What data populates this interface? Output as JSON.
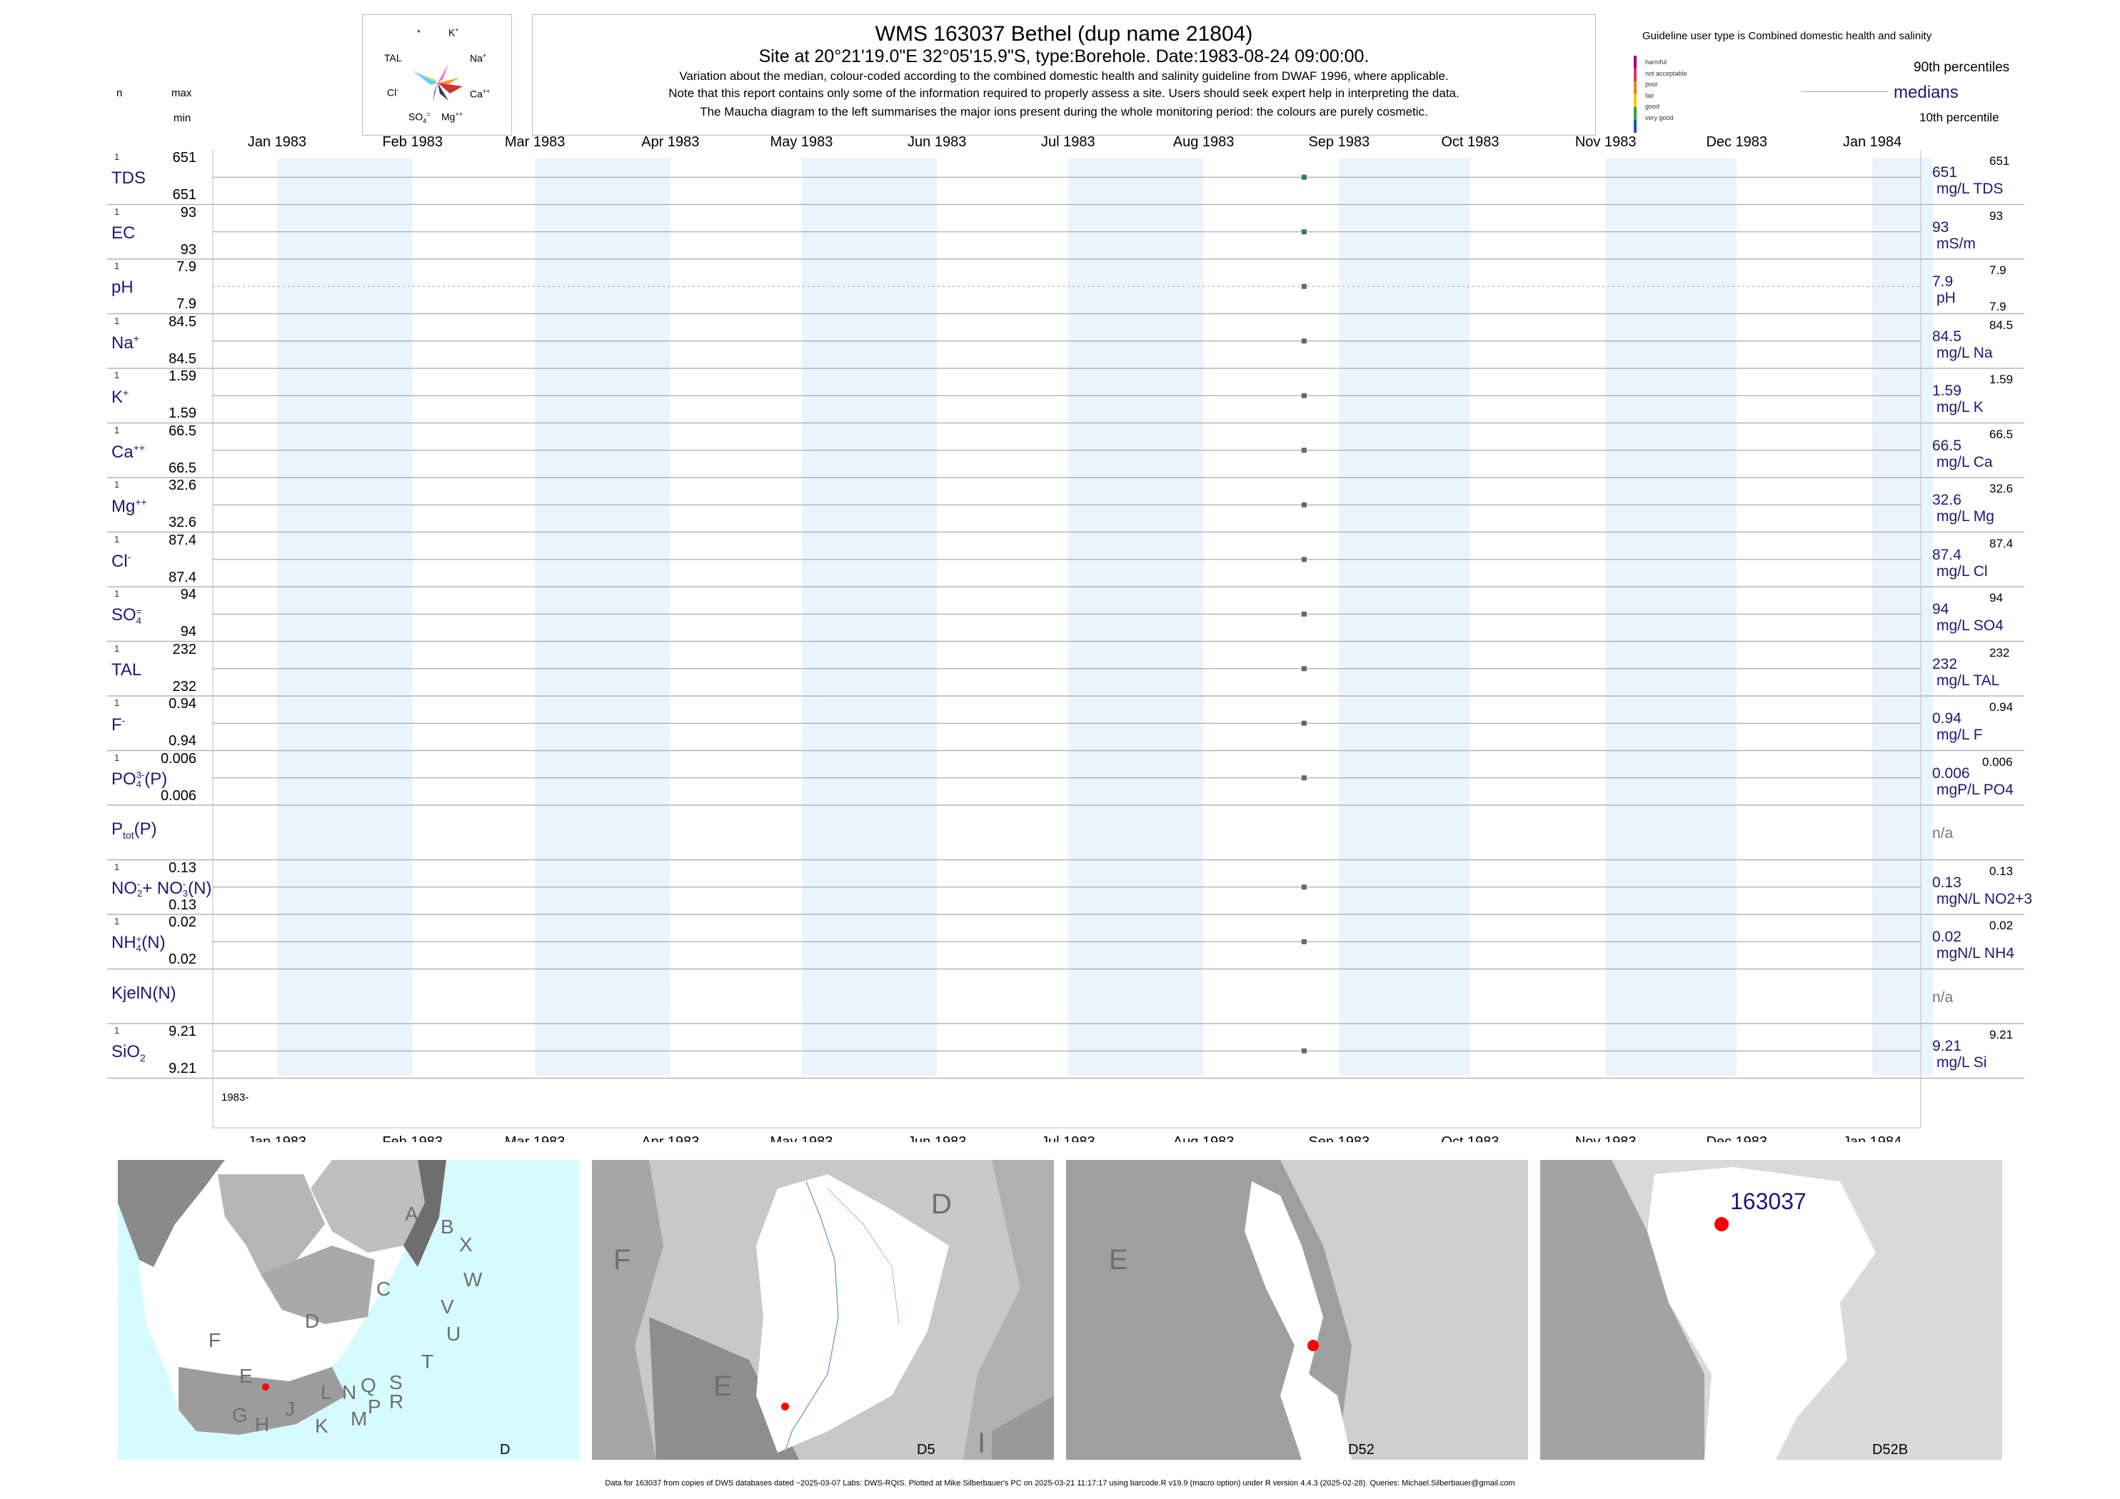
{
  "header": {
    "title": "WMS 163037  Bethel (dup name 21804)",
    "subtitle": "Site at 20°21'19.0\"E 32°05'15.9\"S, type:Borehole. Date:1983-08-24 09:00:00.",
    "note1": "Variation about the median,  colour-coded according to the combined domestic health and salinity guideline from DWAF 1996, where applicable.",
    "note2": "Note that this report contains only some of the information required to properly assess a site. Users should seek expert help in interpreting the data.",
    "note3": "The Maucha diagram to the left summarises the major ions present during the whole monitoring period: the colours are purely cosmetic."
  },
  "left_header": {
    "n": "n",
    "max": "max",
    "min": "min"
  },
  "maucha": {
    "labels": {
      "star": "*",
      "k": "K",
      "tal": "TAL",
      "na": "Na",
      "cl": "Cl",
      "ca": "Ca",
      "so4": "SO",
      "mg": "Mg"
    }
  },
  "legend": {
    "guideline": "Guideline user type is Combined domestic health and salinity",
    "levels": [
      "harmful",
      "not acceptable",
      "poor",
      "fair",
      "good",
      "very good"
    ],
    "colors": [
      "#a0007a",
      "#e8305a",
      "#f08020",
      "#e8d000",
      "#30a040",
      "#2050c0"
    ],
    "p90": "90th percentiles",
    "medians": "medians",
    "p10": "10th percentile"
  },
  "months": [
    "Jan 1983",
    "Feb 1983",
    "Mar 1983",
    "Apr 1983",
    "May 1983",
    "Jun 1983",
    "Jul 1983",
    "Aug 1983",
    "Sep 1983",
    "Oct 1983",
    "Nov 1983",
    "Dec 1983",
    "Jan 1984"
  ],
  "year_label": "1983-",
  "chart_data": {
    "type": "scatter",
    "x_range": [
      "1983-01-01",
      "1984-01-01"
    ],
    "sample_date": "1983-08-24",
    "rows": [
      {
        "label": "TDS",
        "n": "1",
        "max": "651",
        "min": "651",
        "median": "651",
        "unit": "mg/L TDS",
        "p90": "651",
        "p10": "",
        "color": "#2e7d4f"
      },
      {
        "label": "EC",
        "n": "1",
        "max": "93",
        "min": "93",
        "median": "93",
        "unit": "mS/m",
        "p90": "93",
        "p10": "",
        "color": "#2e7d4f"
      },
      {
        "label": "pH",
        "n": "1",
        "max": "7.9",
        "min": "7.9",
        "median": "7.9",
        "unit": "pH",
        "p90": "7.9",
        "p10": "7.9",
        "color": "#666666"
      },
      {
        "label": "Na",
        "sup": "+",
        "n": "1",
        "max": "84.5",
        "min": "84.5",
        "median": "84.5",
        "unit": "mg/L Na",
        "p90": "84.5",
        "p10": "",
        "color": "#666666"
      },
      {
        "label": "K",
        "sup": "+",
        "n": "1",
        "max": "1.59",
        "min": "1.59",
        "median": "1.59",
        "unit": "mg/L K",
        "p90": "1.59",
        "p10": "",
        "color": "#666666"
      },
      {
        "label": "Ca",
        "sup": "++",
        "n": "1",
        "max": "66.5",
        "min": "66.5",
        "median": "66.5",
        "unit": "mg/L Ca",
        "p90": "66.5",
        "p10": "",
        "color": "#666666"
      },
      {
        "label": "Mg",
        "sup": "++",
        "n": "1",
        "max": "32.6",
        "min": "32.6",
        "median": "32.6",
        "unit": "mg/L Mg",
        "p90": "32.6",
        "p10": "",
        "color": "#666666"
      },
      {
        "label": "Cl",
        "sup": "-",
        "n": "1",
        "max": "87.4",
        "min": "87.4",
        "median": "87.4",
        "unit": "mg/L Cl",
        "p90": "87.4",
        "p10": "",
        "color": "#666666"
      },
      {
        "label": "SO",
        "sub": "4",
        "sup": "=",
        "n": "1",
        "max": "94",
        "min": "94",
        "median": "94",
        "unit": "mg/L SO4",
        "p90": "94",
        "p10": "",
        "color": "#666666"
      },
      {
        "label": "TAL",
        "n": "1",
        "max": "232",
        "min": "232",
        "median": "232",
        "unit": "mg/L TAL",
        "p90": "232",
        "p10": "",
        "color": "#666666"
      },
      {
        "label": "F",
        "sup": "-",
        "n": "1",
        "max": "0.94",
        "min": "0.94",
        "median": "0.94",
        "unit": "mg/L F",
        "p90": "0.94",
        "p10": "",
        "color": "#666666"
      },
      {
        "label": "PO",
        "sub": "4",
        "sup": "3-",
        "tail": "(P)",
        "n": "1",
        "max": "0.006",
        "min": "0.006",
        "median": "0.006",
        "unit": "mgP/L PO4",
        "p90": "0.006",
        "p10": "",
        "color": "#666666"
      },
      {
        "label": "P",
        "sub": "tot",
        "tail": "(P)",
        "n": "",
        "max": "",
        "min": "",
        "median": "n/a",
        "unit": "",
        "p90": "",
        "p10": "",
        "color": ""
      },
      {
        "label": "NO",
        "sub": "2",
        "sup": "-",
        "tail": "+ NO",
        "sub2": "3",
        "sup2": "-",
        "tail2": "(N)",
        "n": "1",
        "max": "0.13",
        "min": "0.13",
        "median": "0.13",
        "unit": "mgN/L NO2+3",
        "p90": "0.13",
        "p10": "",
        "color": "#666666"
      },
      {
        "label": "NH",
        "sub": "4",
        "sup": "+",
        "tail": "(N)",
        "n": "1",
        "max": "0.02",
        "min": "0.02",
        "median": "0.02",
        "unit": "mgN/L NH4",
        "p90": "0.02",
        "p10": "",
        "color": "#666666"
      },
      {
        "label": "KjelN(N)",
        "n": "",
        "max": "",
        "min": "",
        "median": "n/a",
        "unit": "",
        "p90": "",
        "p10": "",
        "color": ""
      },
      {
        "label": "SiO",
        "sub": "2",
        "n": "1",
        "max": "9.21",
        "min": "9.21",
        "median": "9.21",
        "unit": "mg/L Si",
        "p90": "9.21",
        "p10": "",
        "color": "#666666"
      }
    ]
  },
  "maps": {
    "m1": {
      "letters": [
        "A",
        "B",
        "X",
        "C",
        "W",
        "D",
        "V",
        "U",
        "F",
        "T",
        "E",
        "S",
        "R",
        "N",
        "Q",
        "L",
        "J",
        "P",
        "M",
        "K",
        "H",
        "G"
      ],
      "code": "D"
    },
    "m2": {
      "letters": [
        "D",
        "F",
        "E",
        "I"
      ],
      "code": "D5"
    },
    "m3": {
      "letters": [
        "E"
      ],
      "code": "D52"
    },
    "m4": {
      "site": "163037",
      "code": "D52B"
    }
  },
  "footer": "Data for 163037 from copies of DWS databases dated ~2025-03-07 Labs: DWS-RQIS. Plotted at Mike Silberbauer's PC on 2025-03-21 11:17:17 using barcode.R v19.9 (macro option) under R version 4.4.3 (2025-02-28). Queries: Michael.Silberbauer@gmail.com"
}
